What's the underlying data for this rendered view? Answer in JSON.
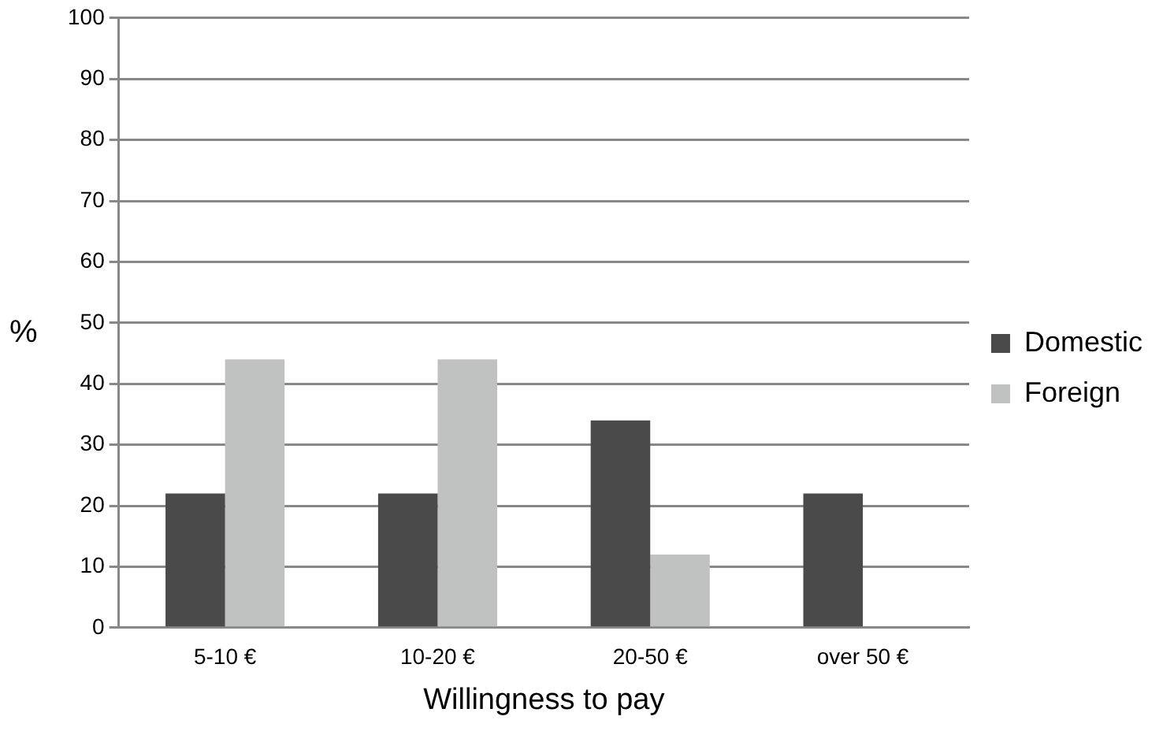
{
  "chart_data": {
    "type": "bar",
    "xlabel": "Willingness to pay",
    "ylabel": "%",
    "categories": [
      "5-10 €",
      "10-20 €",
      "20-50 €",
      "over 50 €"
    ],
    "series": [
      {
        "name": "Domestic",
        "color": "#4a4a4a",
        "values": [
          22,
          22,
          34,
          22
        ]
      },
      {
        "name": "Foreign",
        "color": "#c0c2c1",
        "values": [
          44,
          44,
          12,
          0
        ]
      }
    ],
    "ylim": [
      0,
      100
    ],
    "yticks": [
      0,
      10,
      20,
      30,
      40,
      50,
      60,
      70,
      80,
      90,
      100
    ],
    "grid": "y",
    "legend": "right"
  }
}
